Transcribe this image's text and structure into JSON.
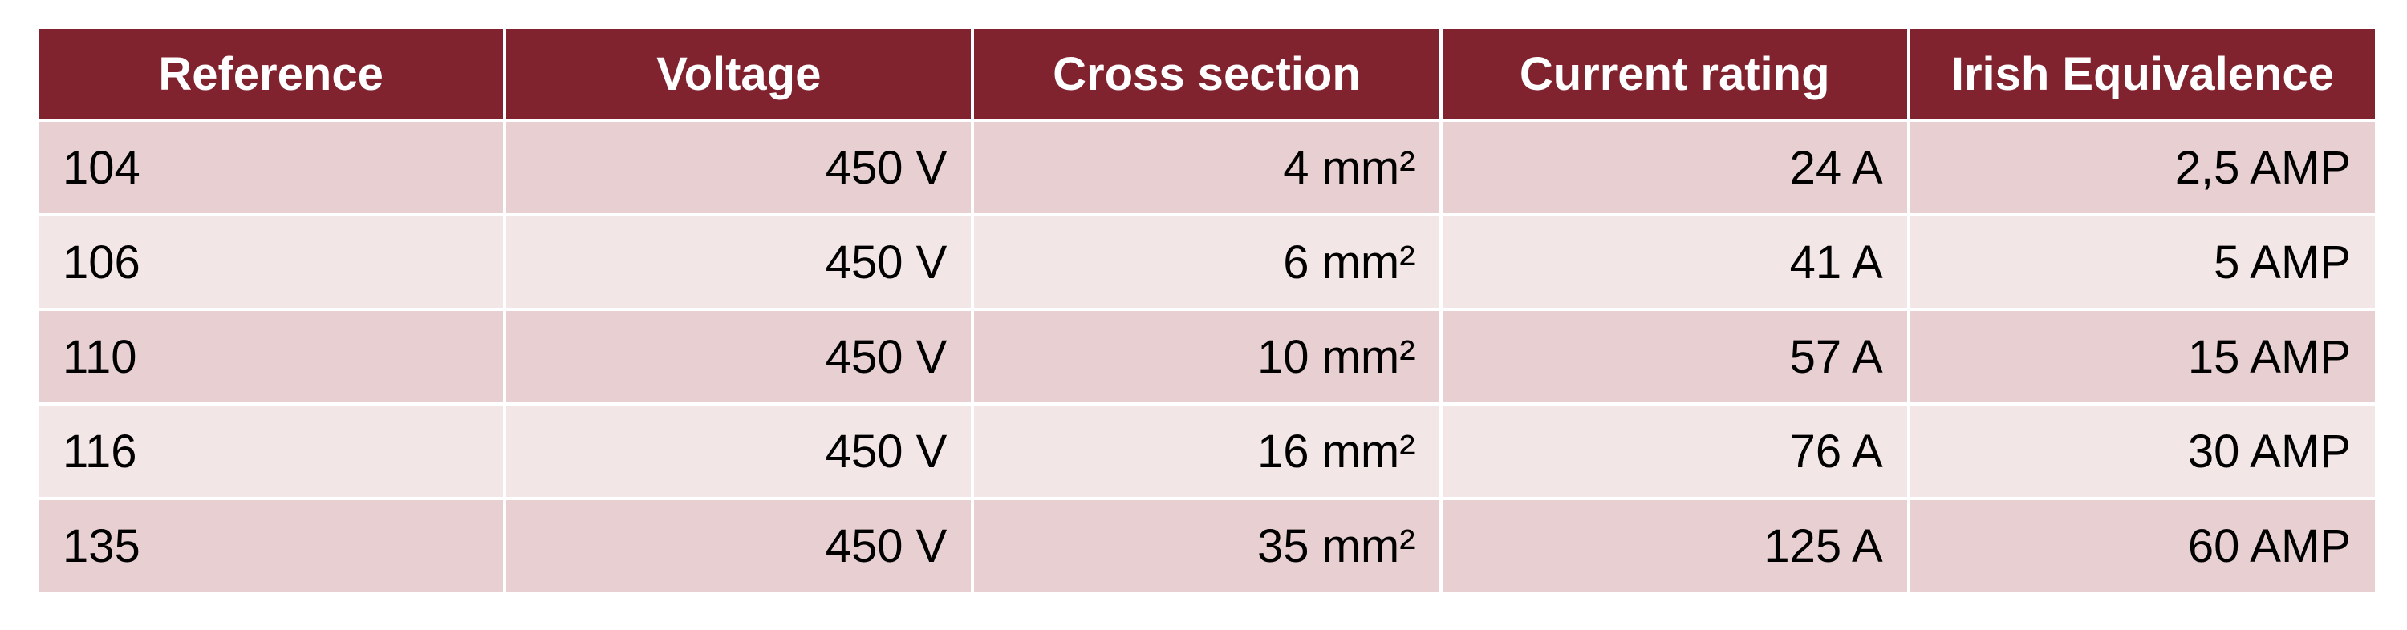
{
  "table": {
    "header": [
      "Reference",
      "Voltage",
      "Cross section",
      "Current rating",
      "Irish Equivalence"
    ],
    "rows": [
      [
        "104",
        "450 V",
        "4 mm²",
        "24 A",
        "2,5 AMP"
      ],
      [
        "106",
        "450 V",
        "6 mm²",
        "41 A",
        "5 AMP"
      ],
      [
        "110",
        "450 V",
        "10 mm²",
        "57 A",
        "15 AMP"
      ],
      [
        "116",
        "450 V",
        "16 mm²",
        "76 A",
        "30 AMP"
      ],
      [
        "135",
        "450 V",
        "35 mm²",
        "125 A",
        "60 AMP"
      ]
    ]
  }
}
